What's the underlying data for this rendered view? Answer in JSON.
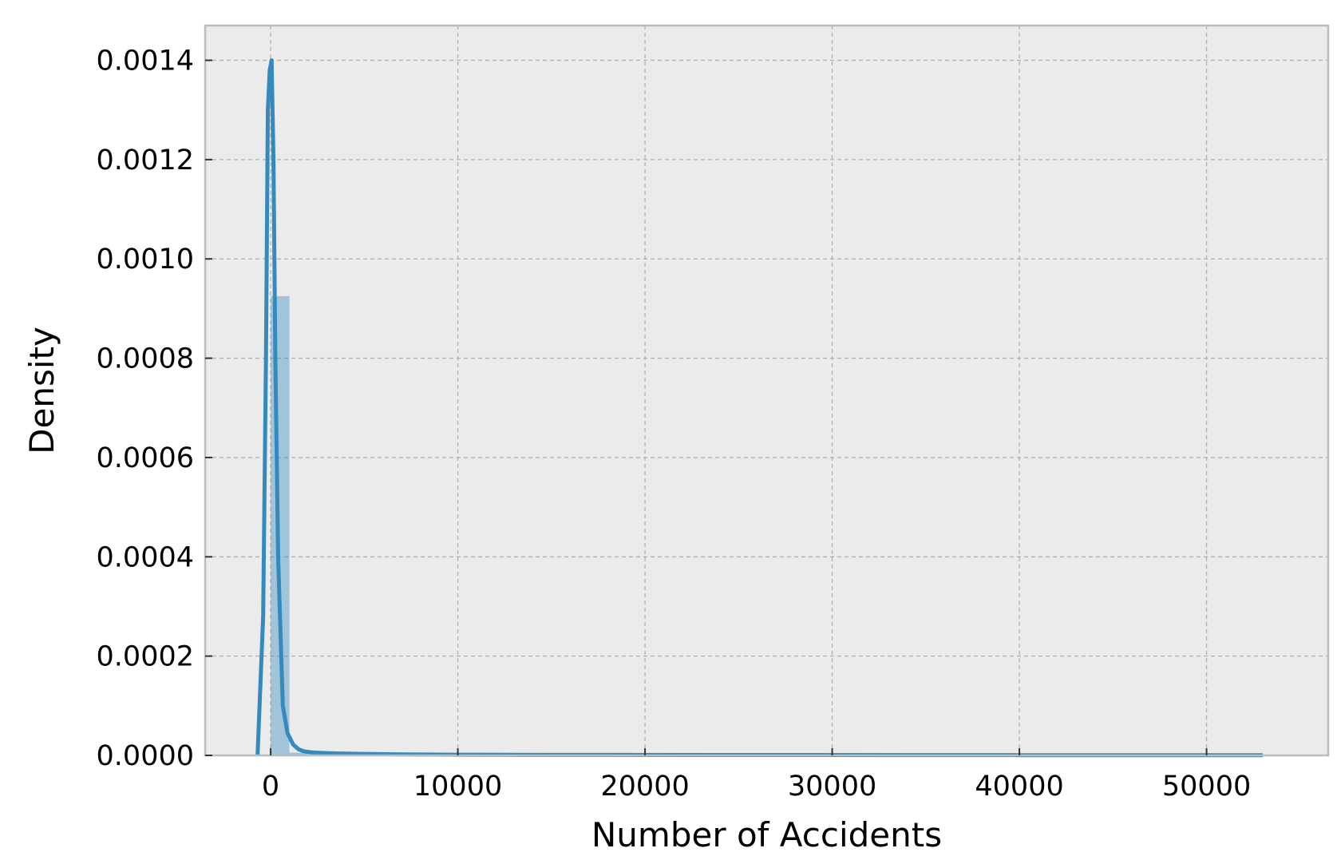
{
  "chart_data": {
    "type": "area",
    "title": "",
    "xlabel": "Number of Accidents",
    "ylabel": "Density",
    "xlim": [
      -3500,
      56500
    ],
    "ylim": [
      0,
      0.00147
    ],
    "xticks": [
      0,
      10000,
      20000,
      30000,
      40000,
      50000
    ],
    "xtick_labels": [
      "0",
      "10000",
      "20000",
      "30000",
      "40000",
      "50000"
    ],
    "yticks": [
      0,
      0.0002,
      0.0004,
      0.0006,
      0.0008,
      0.001,
      0.0012,
      0.0014
    ],
    "ytick_labels": [
      "0.0000",
      "0.0002",
      "0.0004",
      "0.0006",
      "0.0008",
      "0.0010",
      "0.0012",
      "0.0014"
    ],
    "grid": true,
    "style": "bmh",
    "colors": {
      "background": "#ebebeb",
      "line": "#348abd",
      "histogram": "#348abd",
      "grid": "#b0b0b0"
    },
    "histogram": {
      "bins": [
        {
          "x0": 0,
          "x1": 1000,
          "density": 0.000925
        },
        {
          "x0": 1000,
          "x1": 2000,
          "density": 5.5e-06
        },
        {
          "x0": 2000,
          "x1": 3000,
          "density": 2.5e-06
        }
      ]
    },
    "kde": {
      "x": [
        -700,
        -400,
        -250,
        -150,
        -50,
        50,
        150,
        250,
        400,
        650,
        900,
        1200,
        1500,
        1800,
        2200,
        2700,
        3500,
        5000,
        7000,
        10000,
        15000,
        25000,
        40000,
        53000
      ],
      "y": [
        0.0,
        0.00028,
        0.0008,
        0.0013,
        0.00138,
        0.0014,
        0.0012,
        0.0008,
        0.0004,
        0.0001,
        4.5e-05,
        2.2e-05,
        1.2e-05,
        8e-06,
        6e-06,
        5e-06,
        4e-06,
        3e-06,
        2e-06,
        1.5e-06,
        1e-06,
        8e-07,
        5e-07,
        3e-07
      ]
    }
  }
}
